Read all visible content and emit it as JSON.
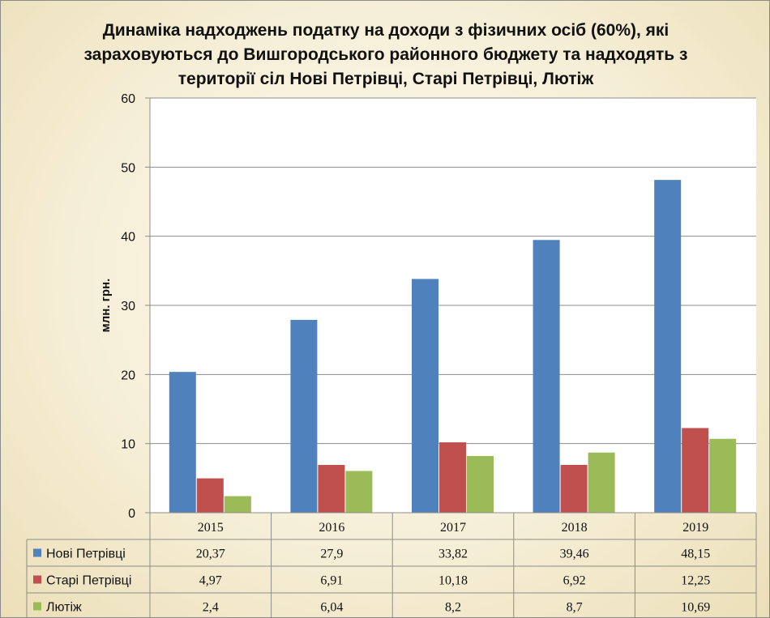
{
  "chart_data": {
    "type": "bar",
    "title": "Динаміка надходжень податку на доходи з фізичних осіб (60%), які зараховуються до Вишгородського районного бюджету та надходять з території сіл Нові Петрівці, Старі Петрівці, Лютіж",
    "ylabel": "млн. грн.",
    "xlabel": "",
    "ylim": [
      0,
      60
    ],
    "yticks": [
      "0",
      "10",
      "20",
      "30",
      "40",
      "50",
      "60"
    ],
    "grid": true,
    "legend": "data-table",
    "categories": [
      "2015",
      "2016",
      "2017",
      "2018",
      "2019"
    ],
    "series": [
      {
        "name": "Нові Петрівці",
        "values": [
          20.37,
          27.9,
          33.82,
          39.46,
          48.15
        ],
        "labels": [
          "20,37",
          "27,9",
          "33,82",
          "39,46",
          "48,15"
        ],
        "color": "#4f81bd"
      },
      {
        "name": "Старі Петрівці",
        "values": [
          4.97,
          6.91,
          10.18,
          6.92,
          12.25
        ],
        "labels": [
          "4,97",
          "6,91",
          "10,18",
          "6,92",
          "12,25"
        ],
        "color": "#c0504d"
      },
      {
        "name": "Лютіж",
        "values": [
          2.4,
          6.04,
          8.2,
          8.7,
          10.69
        ],
        "labels": [
          "2,4",
          "6,04",
          "8,2",
          "8,7",
          "10,69"
        ],
        "color": "#9bbb59"
      }
    ]
  }
}
